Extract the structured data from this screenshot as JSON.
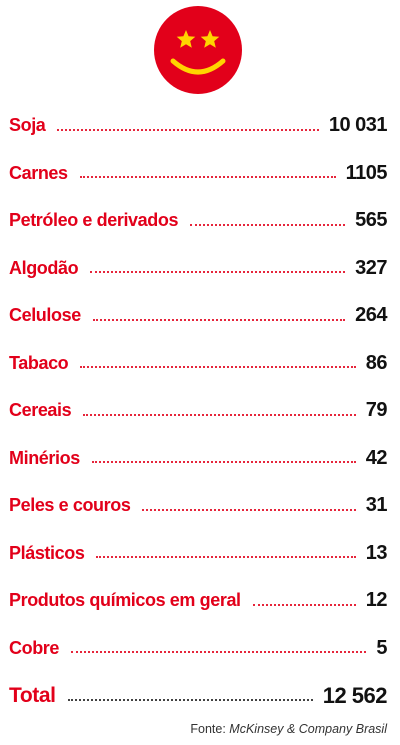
{
  "emblem": {
    "icon": "smiley-star-eyes-icon",
    "face_color": "#e2001a",
    "feature_color": "#ffd500"
  },
  "colors": {
    "label": "#e2001a",
    "value": "#111111"
  },
  "items": [
    {
      "label": "Soja",
      "value": "10 031"
    },
    {
      "label": "Carnes",
      "value": "1105"
    },
    {
      "label": "Petróleo e derivados",
      "value": "565"
    },
    {
      "label": "Algodão",
      "value": "327"
    },
    {
      "label": "Celulose",
      "value": "264"
    },
    {
      "label": "Tabaco",
      "value": "86"
    },
    {
      "label": "Cereais",
      "value": "79"
    },
    {
      "label": "Minérios",
      "value": "42"
    },
    {
      "label": "Peles e couros",
      "value": "31"
    },
    {
      "label": "Plásticos",
      "value": "13"
    },
    {
      "label": "Produtos químicos em geral",
      "value": "12"
    },
    {
      "label": "Cobre",
      "value": "5"
    }
  ],
  "total": {
    "label": "Total",
    "value": "12 562"
  },
  "source": {
    "prefix": "Fonte: ",
    "name": "McKinsey & Company Brasil"
  }
}
